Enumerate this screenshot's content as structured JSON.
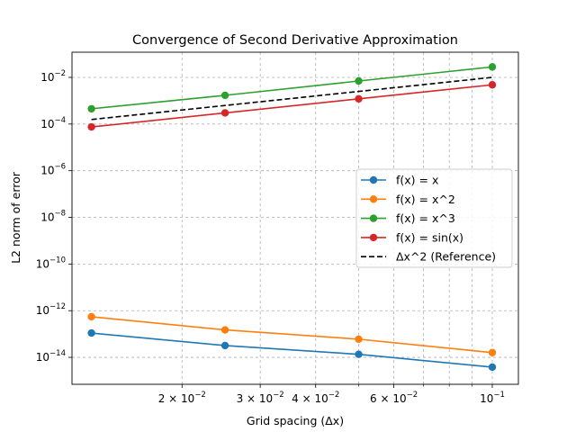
{
  "chart_data": {
    "type": "line",
    "title": "Convergence of Second Derivative Approximation",
    "xlabel": "Grid spacing (Δx)",
    "ylabel": "L2 norm of error",
    "xscale": "log",
    "yscale": "log",
    "xlim": [
      0.0113,
      0.1145
    ],
    "ylim": [
      7e-16,
      0.12
    ],
    "grid": true,
    "legend_position": "center-right",
    "x": [
      0.0125,
      0.025,
      0.05,
      0.1
    ],
    "series": [
      {
        "name": "f(x) = x",
        "color": "#1f77b4",
        "style": "solid",
        "marker": "circle",
        "values": [
          1.1e-13,
          3.2e-14,
          1.35e-14,
          3.8e-15
        ]
      },
      {
        "name": "f(x) = x^2",
        "color": "#ff7f0e",
        "style": "solid",
        "marker": "circle",
        "values": [
          5.5e-13,
          1.5e-13,
          6e-14,
          1.6e-14
        ]
      },
      {
        "name": "f(x) = x^3",
        "color": "#2ca02c",
        "style": "solid",
        "marker": "circle",
        "values": [
          0.00045,
          0.0017,
          0.007,
          0.028
        ]
      },
      {
        "name": "f(x) = sin(x)",
        "color": "#d62728",
        "style": "solid",
        "marker": "circle",
        "values": [
          7.5e-05,
          0.0003,
          0.0012,
          0.0048
        ]
      },
      {
        "name": "Δx^2 (Reference)",
        "color": "#000000",
        "style": "dashed",
        "marker": "none",
        "values": [
          0.00015625,
          0.000625,
          0.0025,
          0.01
        ]
      }
    ],
    "y_ticks": [
      {
        "value": 1e-14,
        "base": "10",
        "exp": "−14"
      },
      {
        "value": 1e-12,
        "base": "10",
        "exp": "−12"
      },
      {
        "value": 1e-10,
        "base": "10",
        "exp": "−10"
      },
      {
        "value": 1e-08,
        "base": "10",
        "exp": "−8"
      },
      {
        "value": 1e-06,
        "base": "10",
        "exp": "−6"
      },
      {
        "value": 0.0001,
        "base": "10",
        "exp": "−4"
      },
      {
        "value": 0.01,
        "base": "10",
        "exp": "−2"
      }
    ],
    "x_ticks": [
      {
        "value": 0.02,
        "base": "2 × 10",
        "exp": "−2"
      },
      {
        "value": 0.03,
        "base": "3 × 10",
        "exp": "−2"
      },
      {
        "value": 0.04,
        "base": "4 × 10",
        "exp": "−2"
      },
      {
        "value": 0.06,
        "base": "6 × 10",
        "exp": "−2"
      },
      {
        "value": 0.1,
        "base": "10",
        "exp": "−1"
      }
    ],
    "x_minor_ticks": [
      0.05,
      0.07,
      0.08,
      0.09
    ]
  }
}
